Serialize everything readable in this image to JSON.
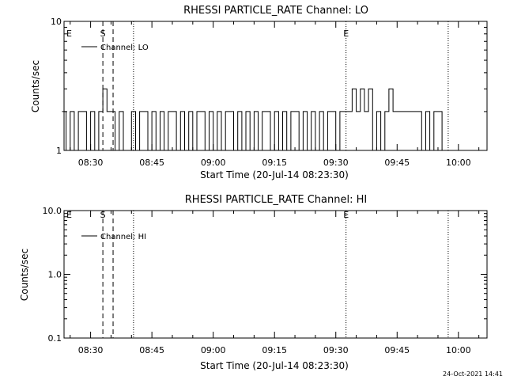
{
  "footer": {
    "timestamp": "24-Oct-2021 14:41"
  },
  "x_tick_labels": [
    "08:30",
    "08:45",
    "09:00",
    "09:15",
    "09:30",
    "09:45",
    "10:00"
  ],
  "x_tick_minutes": [
    30,
    45,
    60,
    75,
    90,
    105,
    120
  ],
  "x_range_minutes": [
    23.5,
    127.0
  ],
  "time_unit": "minutes after 08:00",
  "event_lines": [
    {
      "minutes": 33.0,
      "style": "dashed",
      "label": "S"
    },
    {
      "minutes": 35.5,
      "style": "dashed",
      "label": ""
    },
    {
      "minutes": 40.5,
      "style": "dotted",
      "label": ""
    },
    {
      "minutes": 92.5,
      "style": "dotted",
      "label": "E"
    },
    {
      "minutes": 117.5,
      "style": "dotted",
      "label": ""
    }
  ],
  "left_marker": "E",
  "chart_data": [
    {
      "type": "line",
      "title": "RHESSI PARTICLE_RATE Channel: LO",
      "xlabel": "Start Time (20-Jul-14 08:23:30)",
      "ylabel": "Counts/sec",
      "yscale": "log",
      "ylim": [
        1,
        10
      ],
      "y_tick_values": [
        1,
        10
      ],
      "y_tick_labels": [
        "1",
        "10"
      ],
      "legend": {
        "placement": "top-left",
        "entries": [
          "Channel: LO"
        ]
      },
      "series": [
        {
          "name": "Channel: LO",
          "x": [
            23.5,
            24.5,
            25.5,
            26.5,
            27.5,
            28.5,
            29.5,
            30.5,
            31.5,
            32.5,
            33.5,
            34.5,
            35.5,
            36.5,
            37.5,
            38.5,
            39.5,
            40.5,
            41.5,
            42.5,
            43.5,
            44.5,
            45.5,
            46.5,
            47.5,
            48.5,
            49.5,
            50.5,
            51.5,
            52.5,
            53.5,
            54.5,
            55.5,
            56.5,
            57.5,
            58.5,
            59.5,
            60.5,
            61.5,
            62.5,
            63.5,
            64.5,
            65.5,
            66.5,
            67.5,
            68.5,
            69.5,
            70.5,
            71.5,
            72.5,
            73.5,
            74.5,
            75.5,
            76.5,
            77.5,
            78.5,
            79.5,
            80.5,
            81.5,
            82.5,
            83.5,
            84.5,
            85.5,
            86.5,
            87.5,
            88.5,
            89.5,
            90.5,
            91.5,
            92.5,
            93.5,
            94.5,
            95.5,
            96.5,
            97.5,
            98.5,
            99.5,
            100.5,
            101.5,
            102.5,
            103.5,
            104.5,
            105.5,
            106.5,
            107.5,
            108.5,
            109.5,
            110.5,
            111.5,
            112.5,
            113.5,
            114.5,
            115.5,
            116.5,
            117.5
          ],
          "y": [
            2,
            1,
            2,
            1,
            2,
            2,
            1,
            2,
            1,
            2,
            3,
            2,
            2,
            1,
            2,
            1,
            1,
            2,
            1,
            2,
            2,
            1,
            2,
            1,
            2,
            1,
            2,
            2,
            1,
            2,
            1,
            2,
            1,
            2,
            2,
            1,
            2,
            1,
            2,
            1,
            2,
            2,
            1,
            2,
            1,
            2,
            1,
            2,
            1,
            2,
            2,
            1,
            2,
            1,
            2,
            1,
            2,
            2,
            1,
            2,
            1,
            2,
            1,
            2,
            1,
            2,
            2,
            1,
            2,
            2,
            2,
            3,
            2,
            3,
            2,
            3,
            1,
            2,
            1,
            2,
            3,
            2,
            2,
            2,
            2,
            2,
            2,
            2,
            1,
            2,
            1,
            2,
            2,
            1,
            1
          ]
        }
      ]
    },
    {
      "type": "line",
      "title": "RHESSI PARTICLE_RATE Channel: HI",
      "xlabel": "Start Time (20-Jul-14 08:23:30)",
      "ylabel": "Counts/sec",
      "yscale": "log",
      "ylim": [
        0.1,
        10
      ],
      "y_tick_values": [
        0.1,
        1,
        10
      ],
      "y_tick_labels": [
        "0.1",
        "1.0",
        "10.0"
      ],
      "legend": {
        "placement": "top-left",
        "entries": [
          "Channel: HI"
        ]
      },
      "series": [
        {
          "name": "Channel: HI",
          "x": [],
          "y": []
        }
      ]
    }
  ]
}
